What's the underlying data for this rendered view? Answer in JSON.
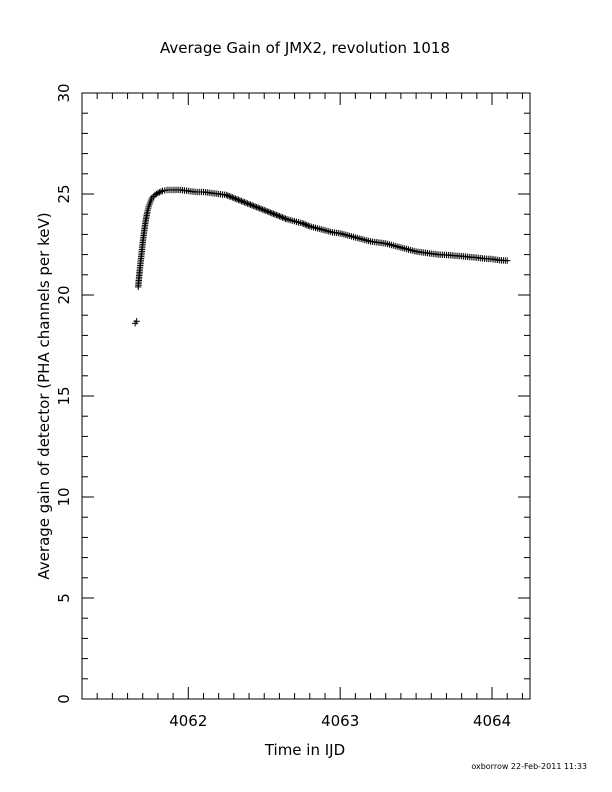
{
  "chart_data": {
    "type": "scatter",
    "title": "Average Gain of JMX2, revolution 1018",
    "xlabel": "Time in IJD",
    "ylabel": "Average gain of detector (PHA channels per keV)",
    "xlim": [
      4061.3,
      4064.25
    ],
    "ylim": [
      0,
      30
    ],
    "xticks_major": [
      4062,
      4063,
      4064
    ],
    "xtick_labels": [
      "4062",
      "4063",
      "4064"
    ],
    "yticks_major": [
      0,
      5,
      10,
      15,
      20,
      25,
      30
    ],
    "ytick_labels": [
      "0",
      "5",
      "10",
      "15",
      "20",
      "25",
      "30"
    ],
    "x_minor_step": 0.1,
    "y_minor_step": 1,
    "grid": false,
    "legend": "none",
    "marker": "plus",
    "color": "#000000",
    "series": [
      {
        "x": [
          4061.65,
          4061.66,
          4061.67,
          4061.68,
          4061.69,
          4061.7,
          4061.71,
          4061.72,
          4061.73,
          4061.74,
          4061.75,
          4061.76,
          4061.78,
          4061.8,
          4061.83,
          4061.86,
          4061.9,
          4061.95,
          4062.0,
          4062.05,
          4062.1,
          4062.15,
          4062.2,
          4062.25,
          4062.3,
          4062.35,
          4062.4,
          4062.45,
          4062.5,
          4062.55,
          4062.6,
          4062.65,
          4062.7,
          4062.75,
          4062.8,
          4062.85,
          4062.9,
          4062.95,
          4063.0,
          4063.05,
          4063.1,
          4063.15,
          4063.2,
          4063.25,
          4063.3,
          4063.35,
          4063.4,
          4063.45,
          4063.5,
          4063.55,
          4063.6,
          4063.65,
          4063.7,
          4063.75,
          4063.8,
          4063.85,
          4063.9,
          4063.95,
          4064.0,
          4064.05,
          4064.1
        ],
        "y": [
          18.6,
          18.7,
          20.4,
          21.2,
          21.9,
          22.6,
          23.2,
          23.7,
          24.1,
          24.4,
          24.6,
          24.8,
          24.95,
          25.05,
          25.15,
          25.2,
          25.2,
          25.2,
          25.15,
          25.1,
          25.1,
          25.05,
          25.0,
          24.95,
          24.8,
          24.65,
          24.5,
          24.35,
          24.2,
          24.05,
          23.9,
          23.75,
          23.65,
          23.55,
          23.4,
          23.3,
          23.2,
          23.1,
          23.05,
          22.95,
          22.85,
          22.75,
          22.65,
          22.6,
          22.55,
          22.45,
          22.35,
          22.25,
          22.15,
          22.1,
          22.05,
          22.0,
          21.98,
          21.95,
          21.92,
          21.88,
          21.85,
          21.8,
          21.78,
          21.72,
          21.7
        ]
      }
    ]
  },
  "footer": {
    "stamp": "oxborrow 22-Feb-2011 11:33"
  }
}
